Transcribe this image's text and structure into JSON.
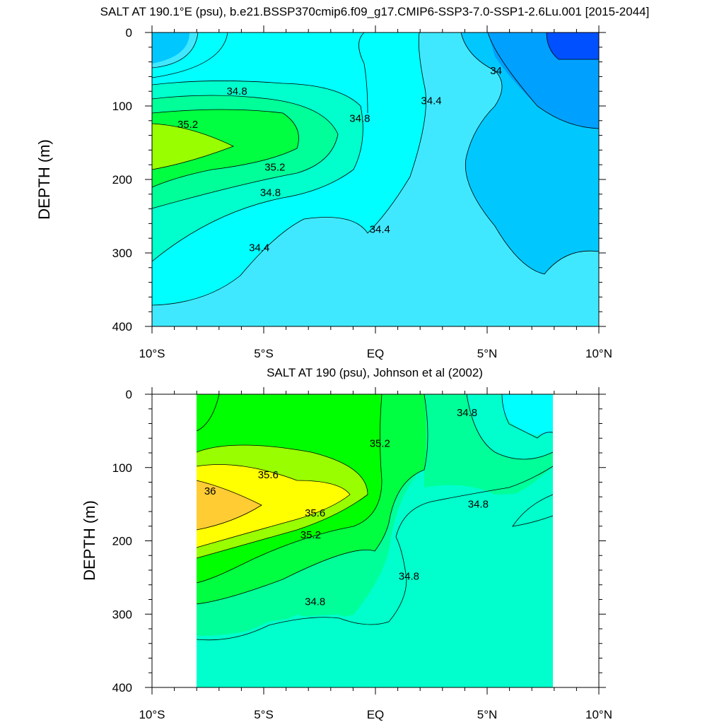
{
  "chart_data": [
    {
      "type": "contour",
      "title": "SALT AT 190.1°E (psu), b.e21.BSSP370cmip6.f09_g17.CMIP6-SSP3-7.0-SSP1-2.6Lu.001 [2015-2044]",
      "xlabel": "",
      "ylabel": "DEPTH (m)",
      "xlim": [
        -10,
        10
      ],
      "ylim": [
        400,
        0
      ],
      "x_ticks": [
        -10,
        -5,
        0,
        5,
        10
      ],
      "x_tick_labels": [
        "10°S",
        "5°S",
        "EQ",
        "5°N",
        "10°N"
      ],
      "y_ticks": [
        0,
        100,
        200,
        300,
        400
      ],
      "y_tick_labels": [
        "0",
        "100",
        "200",
        "300",
        "400"
      ],
      "data_extent": {
        "lat": [
          -10,
          10
        ],
        "depth": [
          5,
          400
        ]
      },
      "contour_interval": 0.2,
      "fill_colors": {
        "below_33.8": "#0050ff",
        "33.8_34.0": "#00a0ff",
        "34.0_34.2": "#00c8ff",
        "34.2_34.4": "#40e8ff",
        "34.4_34.6": "#00ffff",
        "34.6_34.8": "#00ffcc",
        "34.8_35.0": "#00ff99",
        "35.0_35.2": "#00ff40",
        "35.2_35.4": "#99ff00"
      },
      "contour_labels": [
        {
          "text": "34.8",
          "lat": -6.2,
          "depth": 80
        },
        {
          "text": "35.2",
          "lat": -8.4,
          "depth": 125
        },
        {
          "text": "35.2",
          "lat": -4.5,
          "depth": 183
        },
        {
          "text": "34.8",
          "lat": -4.7,
          "depth": 218
        },
        {
          "text": "34.4",
          "lat": -5.2,
          "depth": 293
        },
        {
          "text": "34.8",
          "lat": -0.7,
          "depth": 117
        },
        {
          "text": "34.4",
          "lat": 0.2,
          "depth": 268
        },
        {
          "text": "34.4",
          "lat": 2.5,
          "depth": 93
        },
        {
          "text": "34",
          "lat": 5.4,
          "depth": 52
        }
      ]
    },
    {
      "type": "contour",
      "title": "SALT AT 190 (psu), Johnson et al (2002)",
      "xlabel": "",
      "ylabel": "DEPTH (m)",
      "xlim": [
        -10,
        10
      ],
      "ylim": [
        400,
        0
      ],
      "x_ticks": [
        -10,
        -5,
        0,
        5,
        10
      ],
      "x_tick_labels": [
        "10°S",
        "5°S",
        "EQ",
        "5°N",
        "10°N"
      ],
      "y_ticks": [
        0,
        100,
        200,
        300,
        400
      ],
      "y_tick_labels": [
        "0",
        "100",
        "200",
        "300",
        "400"
      ],
      "data_extent": {
        "lat": [
          -8,
          8
        ],
        "depth": [
          5,
          400
        ]
      },
      "contour_interval": 0.2,
      "fill_colors": {
        "34.4_34.6": "#00ffff",
        "34.6_34.8": "#00ffcc",
        "34.8_35.0": "#00ff99",
        "35.0_35.2": "#00ff40",
        "35.2_35.4": "#00ff00",
        "35.4_35.6": "#99ff00",
        "35.6_35.8": "#ffff00",
        "35.8_36.0": "#ffff00",
        "above_36.0": "#ffcc33"
      },
      "contour_labels": [
        {
          "text": "36",
          "lat": -7.4,
          "depth": 132
        },
        {
          "text": "35.6",
          "lat": -4.8,
          "depth": 110
        },
        {
          "text": "35.6",
          "lat": -2.7,
          "depth": 162
        },
        {
          "text": "35.2",
          "lat": -2.9,
          "depth": 192
        },
        {
          "text": "34.8",
          "lat": -2.7,
          "depth": 283
        },
        {
          "text": "35.2",
          "lat": 0.2,
          "depth": 67
        },
        {
          "text": "34.8",
          "lat": 1.5,
          "depth": 248
        },
        {
          "text": "34.8",
          "lat": 4.6,
          "depth": 150
        },
        {
          "text": "34.8",
          "lat": 4.1,
          "depth": 25
        }
      ]
    }
  ]
}
